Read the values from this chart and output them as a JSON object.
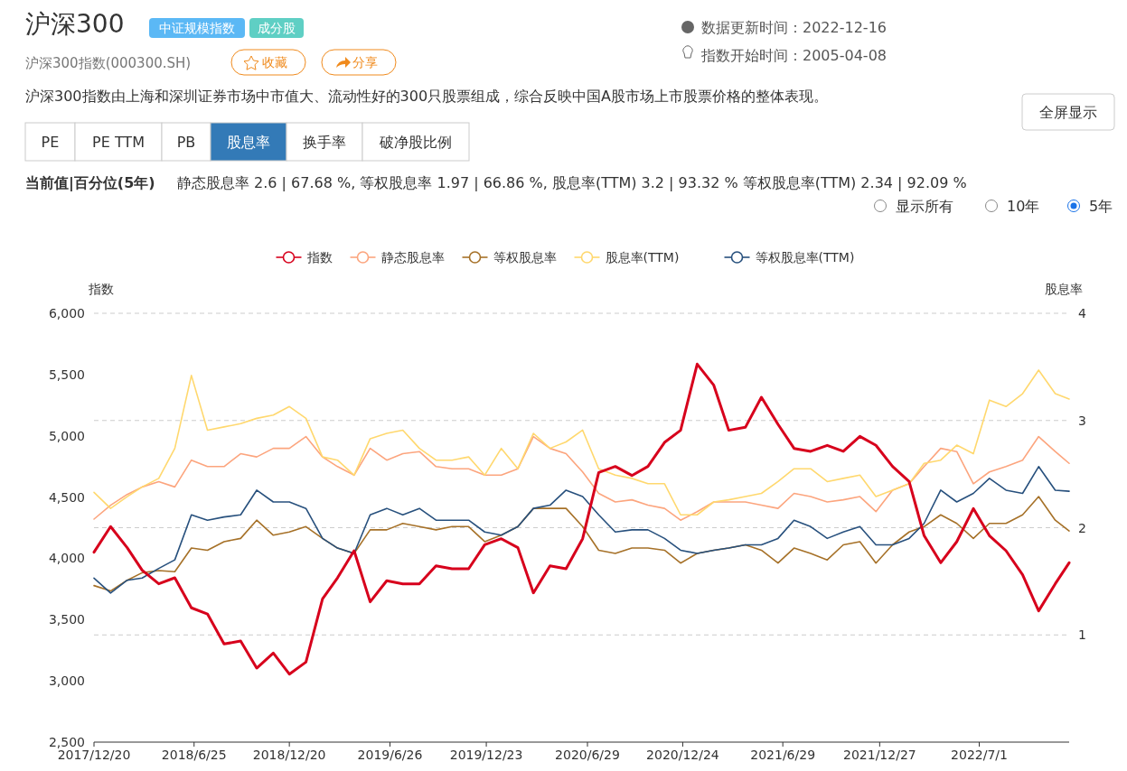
{
  "chart_data": {
    "type": "line",
    "title": "沪深300",
    "subtitle": "沪深300指数(000300.SH)",
    "annotations": [
      "中证规模指数",
      "成分股",
      "收藏",
      "分享",
      "数据更新时间：2022-12-16",
      "指数开始时间：2005-04-08",
      "沪深300指数由上海和深圳证券市场中市值大、流动性好的300只股票组成，综合反映中国A股市场上市股票价格的整体表现。",
      "全屏显示",
      "PE",
      "PE TTM",
      "PB",
      "股息率",
      "换手率",
      "破净股比例",
      "当前值|百分位(5年)",
      "静态股息率 2.6 | 67.68 %, 等权股息率 1.97 | 66.86 %, 股息率(TTM) 3.2 | 93.32 % 等权股息率(TTM) 2.34 | 92.09 %",
      "显示所有",
      "10年",
      "5年"
    ],
    "ylabel": "指数",
    "y2label": "股息率",
    "x": [
      "2017-12-20",
      "2018-01-20",
      "2018-02-20",
      "2018-03-20",
      "2018-04-20",
      "2018-05-20",
      "2018-06-20",
      "2018-07-20",
      "2018-08-20",
      "2018-09-20",
      "2018-10-20",
      "2018-11-20",
      "2018-12-20",
      "2019-01-20",
      "2019-02-20",
      "2019-03-20",
      "2019-04-20",
      "2019-05-20",
      "2019-06-20",
      "2019-07-20",
      "2019-08-20",
      "2019-09-20",
      "2019-10-20",
      "2019-11-20",
      "2019-12-20",
      "2020-01-20",
      "2020-02-20",
      "2020-03-20",
      "2020-04-20",
      "2020-05-20",
      "2020-06-20",
      "2020-07-20",
      "2020-08-20",
      "2020-09-20",
      "2020-10-20",
      "2020-11-20",
      "2020-12-20",
      "2021-01-20",
      "2021-02-20",
      "2021-03-20",
      "2021-04-20",
      "2021-05-20",
      "2021-06-20",
      "2021-07-20",
      "2021-08-20",
      "2021-09-20",
      "2021-10-20",
      "2021-11-20",
      "2021-12-20",
      "2022-01-20",
      "2022-02-20",
      "2022-03-20",
      "2022-04-20",
      "2022-05-20",
      "2022-06-20",
      "2022-07-20",
      "2022-08-20",
      "2022-09-20",
      "2022-10-20",
      "2022-11-20",
      "2022-12-16"
    ],
    "xlim": [
      "2017-12-20",
      "2022-12-16"
    ],
    "xticks": [
      {
        "value": "2017-12-20",
        "label": "2017/12/20"
      },
      {
        "value": "2018-06-25",
        "label": "2018/6/25"
      },
      {
        "value": "2018-12-20",
        "label": "2018/12/20"
      },
      {
        "value": "2019-06-26",
        "label": "2019/6/26"
      },
      {
        "value": "2019-12-23",
        "label": "2019/12/23"
      },
      {
        "value": "2020-06-29",
        "label": "2020/6/29"
      },
      {
        "value": "2020-12-24",
        "label": "2020/12/24"
      },
      {
        "value": "2021-06-29",
        "label": "2021/6/29"
      },
      {
        "value": "2021-12-27",
        "label": "2021/12/27"
      },
      {
        "value": "2022-07-01",
        "label": "2022/7/1"
      }
    ],
    "ylim": [
      2500,
      6000
    ],
    "yticks": [
      {
        "value": 2500,
        "label": "2,500"
      },
      {
        "value": 3000,
        "label": "3,000"
      },
      {
        "value": 3500,
        "label": "3,500"
      },
      {
        "value": 4000,
        "label": "4,000"
      },
      {
        "value": 4500,
        "label": "4,500"
      },
      {
        "value": 5000,
        "label": "5,000"
      },
      {
        "value": 5500,
        "label": "5,500"
      },
      {
        "value": 6000,
        "label": "6,000"
      }
    ],
    "y2lim": [
      0,
      4
    ],
    "y2ticks": [
      1,
      2,
      3,
      4
    ],
    "grid": "y",
    "legend": "top",
    "series": [
      {
        "name": "指数",
        "color": "#d7001c",
        "values": [
          4050,
          4259,
          4087,
          3903,
          3792,
          3841,
          3596,
          3546,
          3301,
          3325,
          3104,
          3227,
          3055,
          3153,
          3669,
          3841,
          4062,
          3645,
          3817,
          3792,
          3792,
          3939,
          3915,
          3915,
          4111,
          4160,
          4087,
          3718,
          3939,
          3915,
          4160,
          4701,
          4750,
          4676,
          4750,
          4946,
          5045,
          5585,
          5413,
          5045,
          5069,
          5315,
          5094,
          4897,
          4873,
          4922,
          4873,
          4995,
          4922,
          4750,
          4627,
          4185,
          3964,
          4136,
          4406,
          4185,
          4062,
          3866,
          3571,
          3792,
          3964
        ]
      },
      {
        "name": "静态股息率",
        "color": "#fca57e",
        "axis": "y2",
        "values": [
          2.08,
          2.21,
          2.31,
          2.38,
          2.43,
          2.38,
          2.63,
          2.57,
          2.57,
          2.69,
          2.66,
          2.74,
          2.74,
          2.85,
          2.66,
          2.57,
          2.49,
          2.74,
          2.63,
          2.69,
          2.71,
          2.57,
          2.55,
          2.55,
          2.49,
          2.49,
          2.55,
          2.85,
          2.74,
          2.69,
          2.52,
          2.32,
          2.24,
          2.26,
          2.21,
          2.18,
          2.07,
          2.15,
          2.24,
          2.24,
          2.24,
          2.21,
          2.18,
          2.32,
          2.29,
          2.24,
          2.26,
          2.29,
          2.15,
          2.35,
          2.41,
          2.57,
          2.74,
          2.71,
          2.41,
          2.52,
          2.57,
          2.63,
          2.85,
          2.71,
          2.6
        ]
      },
      {
        "name": "等权股息率",
        "color": "#a67128",
        "axis": "y2",
        "values": [
          1.46,
          1.41,
          1.51,
          1.58,
          1.6,
          1.59,
          1.81,
          1.79,
          1.87,
          1.9,
          2.07,
          1.93,
          1.96,
          2.01,
          1.9,
          1.81,
          1.76,
          1.98,
          1.98,
          2.04,
          2.01,
          1.98,
          2.01,
          2.01,
          1.87,
          1.93,
          2.01,
          2.18,
          2.18,
          2.18,
          2.01,
          1.79,
          1.76,
          1.81,
          1.81,
          1.79,
          1.67,
          1.76,
          1.79,
          1.81,
          1.84,
          1.79,
          1.67,
          1.81,
          1.76,
          1.7,
          1.84,
          1.87,
          1.67,
          1.84,
          1.96,
          2.01,
          2.12,
          2.04,
          1.9,
          2.04,
          2.04,
          2.12,
          2.29,
          2.07,
          1.97
        ]
      },
      {
        "name": "股息率(TTM)",
        "color": "#ffd86e",
        "axis": "y2",
        "values": [
          2.33,
          2.18,
          2.29,
          2.38,
          2.46,
          2.74,
          3.42,
          2.91,
          2.94,
          2.97,
          3.02,
          3.05,
          3.13,
          3.02,
          2.66,
          2.63,
          2.49,
          2.83,
          2.88,
          2.91,
          2.74,
          2.63,
          2.63,
          2.66,
          2.49,
          2.74,
          2.55,
          2.88,
          2.74,
          2.8,
          2.91,
          2.55,
          2.49,
          2.46,
          2.41,
          2.41,
          2.12,
          2.12,
          2.24,
          2.26,
          2.29,
          2.32,
          2.43,
          2.55,
          2.55,
          2.43,
          2.46,
          2.49,
          2.29,
          2.35,
          2.41,
          2.6,
          2.63,
          2.77,
          2.69,
          3.19,
          3.13,
          3.25,
          3.47,
          3.25,
          3.2
        ]
      },
      {
        "name": "等权股息率(TTM)",
        "color": "#27507d",
        "axis": "y2",
        "values": [
          1.53,
          1.39,
          1.51,
          1.53,
          1.62,
          1.7,
          2.12,
          2.07,
          2.1,
          2.12,
          2.35,
          2.24,
          2.24,
          2.18,
          1.9,
          1.81,
          1.76,
          2.12,
          2.18,
          2.12,
          2.18,
          2.07,
          2.07,
          2.07,
          1.96,
          1.93,
          2.01,
          2.18,
          2.21,
          2.35,
          2.29,
          2.12,
          1.96,
          1.98,
          1.98,
          1.9,
          1.79,
          1.76,
          1.79,
          1.81,
          1.84,
          1.84,
          1.9,
          2.07,
          2.01,
          1.9,
          1.96,
          2.01,
          1.84,
          1.84,
          1.9,
          2.04,
          2.35,
          2.24,
          2.32,
          2.46,
          2.35,
          2.32,
          2.57,
          2.35,
          2.34
        ]
      }
    ]
  }
}
